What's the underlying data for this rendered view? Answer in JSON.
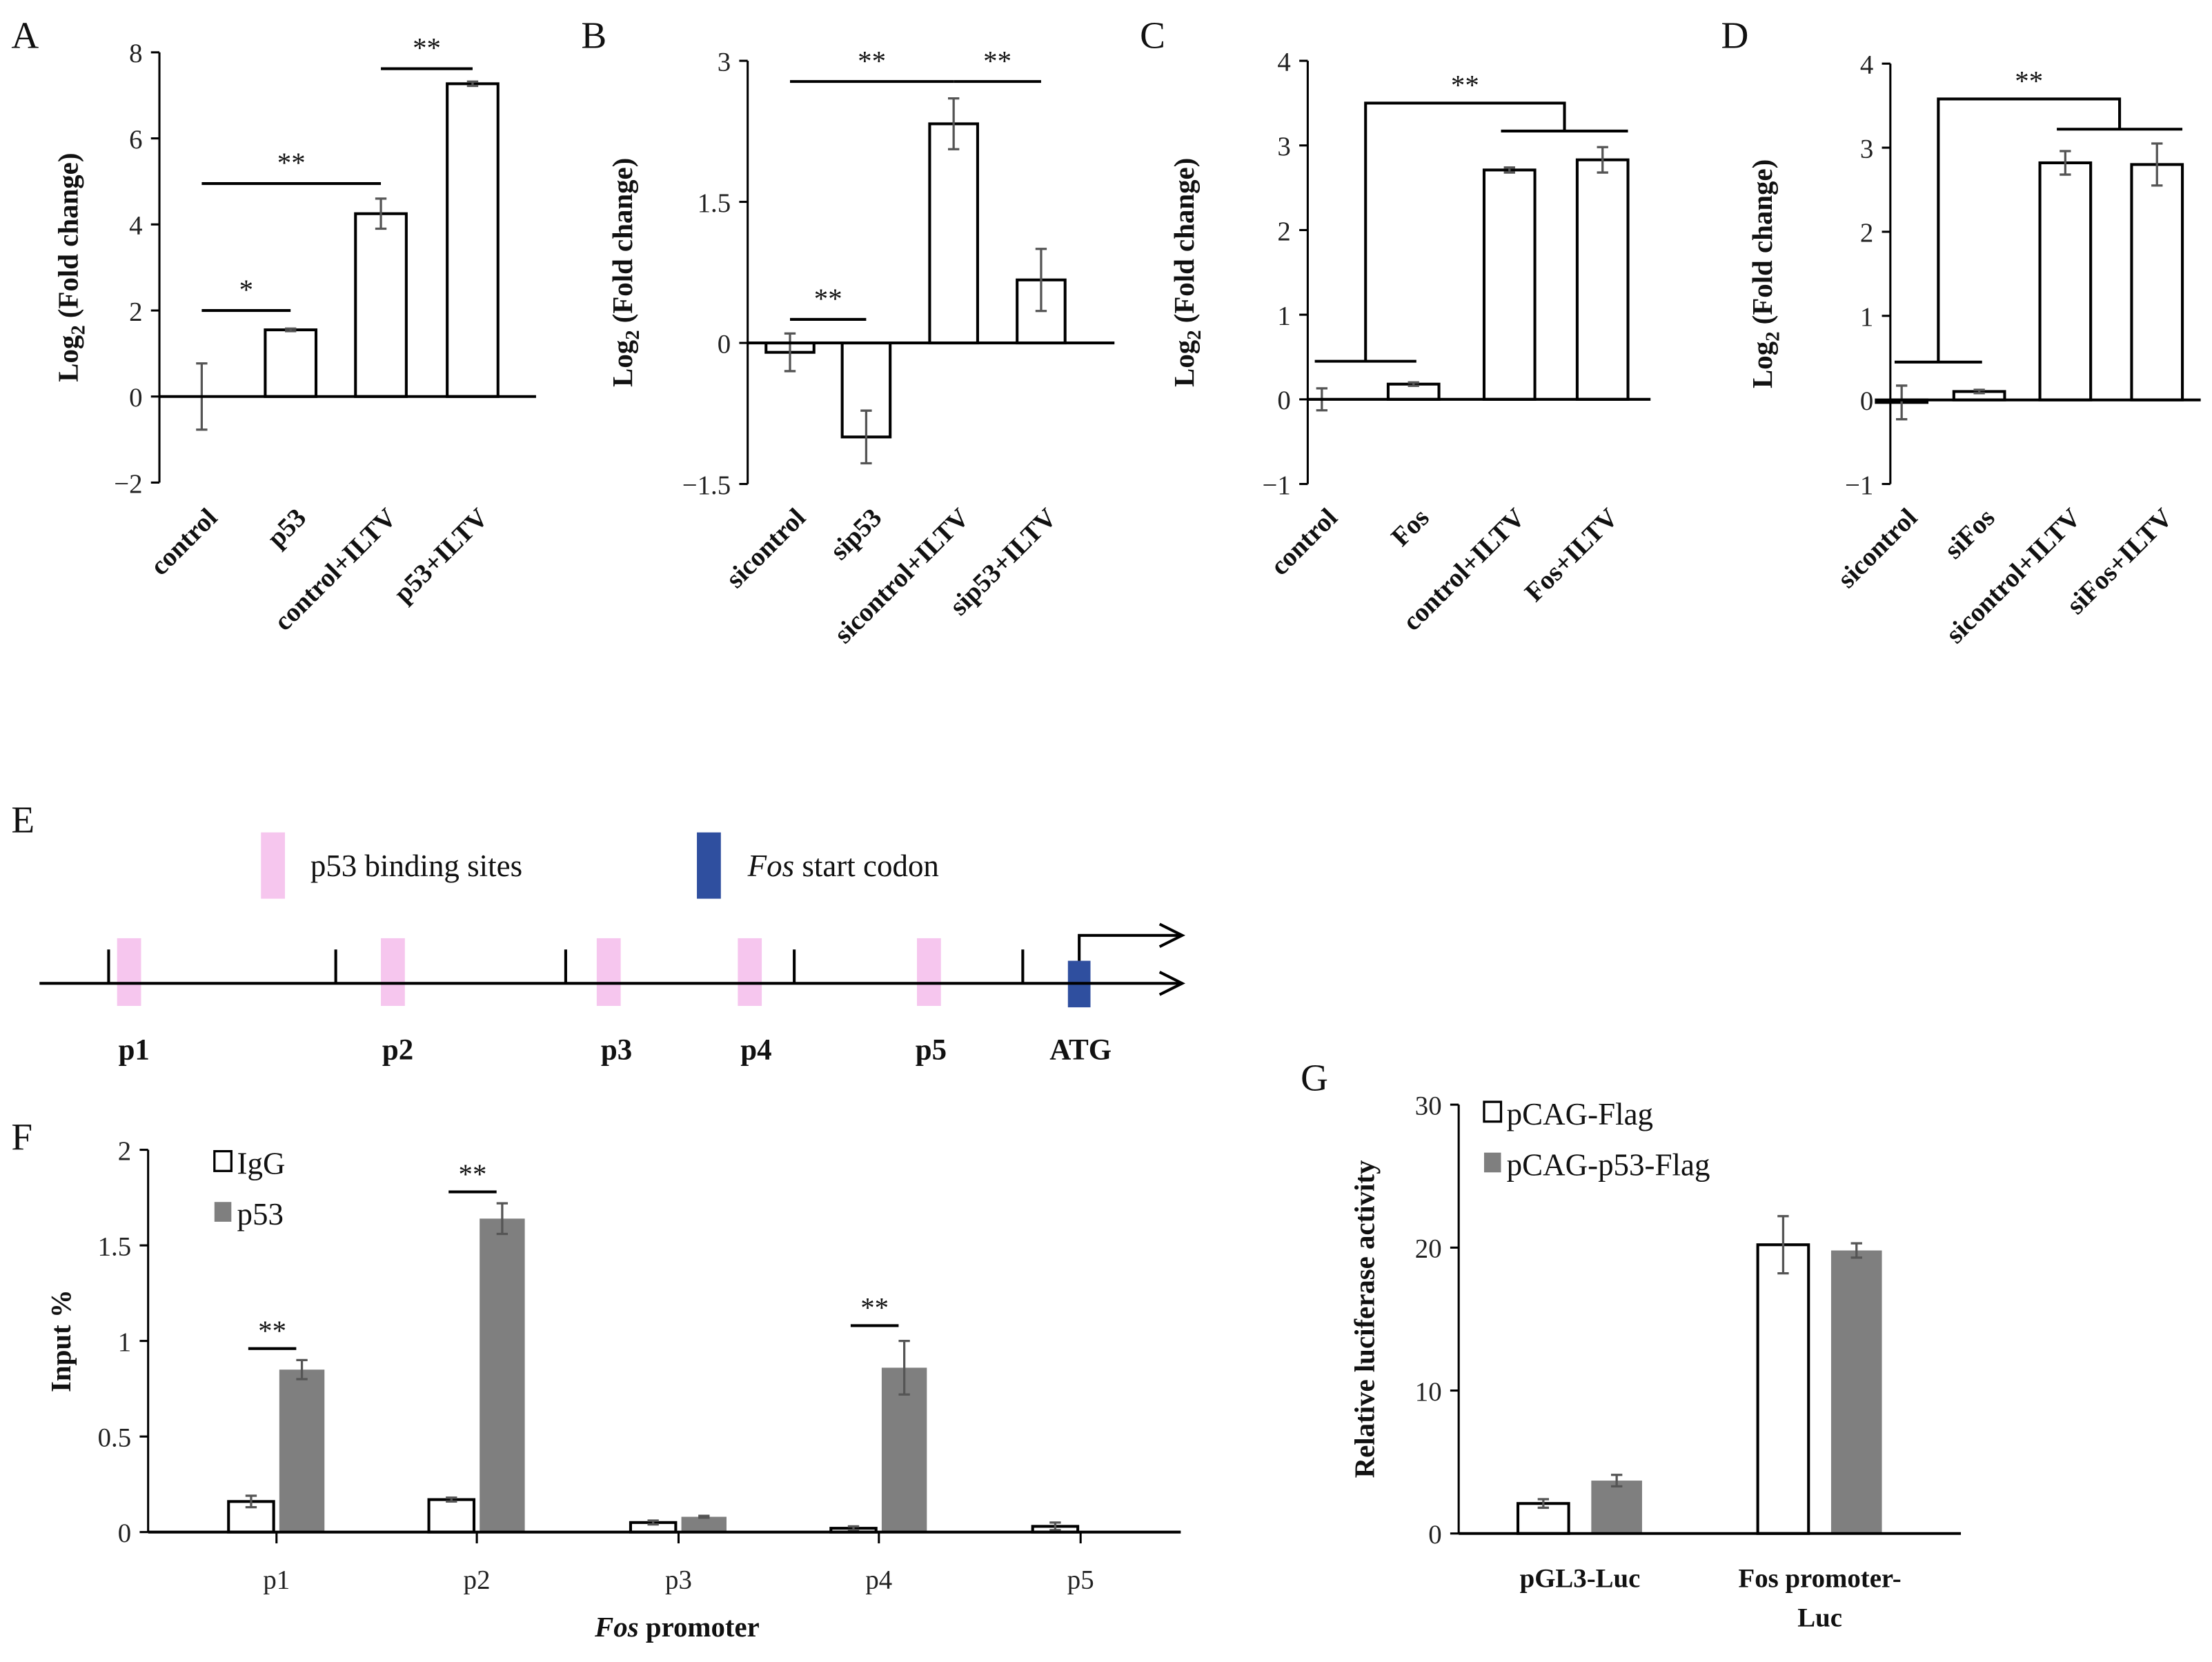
{
  "chart_data": [
    {
      "panel": "A",
      "type": "bar",
      "categories": [
        "control",
        "p53",
        "control+ILTV",
        "p53+ILTV"
      ],
      "series": [
        {
          "name": "",
          "values": [
            0,
            1.55,
            4.25,
            7.27
          ],
          "errors": [
            0.77,
            0.03,
            0.35,
            0.05
          ],
          "color": "#ffffff"
        }
      ],
      "ylabel": {
        "main": "Log",
        "sub": "2",
        "rest": " (Fold change)"
      },
      "ylim": [
        -2,
        8
      ],
      "yticks": [
        "−2",
        "0",
        "2",
        "4",
        "6",
        "8"
      ],
      "ytick_values": [
        -2,
        0,
        2,
        4,
        6,
        8
      ],
      "significance": [
        {
          "type": "line",
          "from": 0,
          "to": 1,
          "y": 2.0,
          "label": "*"
        },
        {
          "type": "line",
          "from": 0,
          "to": 2,
          "y": 4.95,
          "label": "**"
        },
        {
          "type": "line",
          "from": 2,
          "to": 3,
          "y": 7.62,
          "label": "**"
        }
      ]
    },
    {
      "panel": "B",
      "type": "bar",
      "categories": [
        "sicontrol",
        "sip53",
        "sicontrol+ILTV",
        "sip53+ILTV"
      ],
      "series": [
        {
          "name": "",
          "values": [
            -0.1,
            -1.0,
            2.33,
            0.67
          ],
          "errors": [
            0.2,
            0.28,
            0.27,
            0.33
          ],
          "color": "#ffffff"
        }
      ],
      "ylabel": {
        "main": "Log",
        "sub": "2",
        "rest": " (Fold change)"
      },
      "ylim": [
        -1.5,
        3
      ],
      "yticks": [
        "−1.5",
        "0",
        "1.5",
        "3"
      ],
      "ytick_values": [
        -1.5,
        0,
        1.5,
        3
      ],
      "significance": [
        {
          "type": "line",
          "from": 0,
          "to": 1,
          "y": 0.25,
          "label": "**"
        },
        {
          "type": "line",
          "from": 0.5,
          "to": 2,
          "y": 2.78,
          "label": "**"
        },
        {
          "type": "line",
          "from": 2,
          "to": 3,
          "y": 2.78,
          "label": "**"
        }
      ]
    },
    {
      "panel": "C",
      "type": "bar",
      "categories": [
        "control",
        "Fos",
        "control+ILTV",
        "Fos+ILTV"
      ],
      "series": [
        {
          "name": "",
          "values": [
            0,
            0.18,
            2.71,
            2.83
          ],
          "errors": [
            0.13,
            0.02,
            0.03,
            0.15
          ],
          "color": "#ffffff"
        }
      ],
      "ylabel": {
        "main": "Log",
        "sub": "2",
        "rest": " (Fold change)"
      },
      "ylim": [
        -1,
        4
      ],
      "yticks": [
        "−1",
        "0",
        "1",
        "2",
        "3",
        "4"
      ],
      "ytick_values": [
        -1,
        0,
        1,
        2,
        3,
        4
      ],
      "significance": [
        {
          "type": "bracket",
          "group1": [
            0,
            1
          ],
          "y1": 0.45,
          "group2": [
            2,
            3
          ],
          "y2": 3.17,
          "top": 3.5,
          "label": "**"
        }
      ]
    },
    {
      "panel": "D",
      "type": "bar",
      "categories": [
        "sicontrol",
        "siFos",
        "sicontrol+ILTV",
        "siFos+ILTV"
      ],
      "series": [
        {
          "name": "",
          "values": [
            -0.03,
            0.1,
            2.82,
            2.8
          ],
          "errors": [
            0.2,
            0.02,
            0.14,
            0.25
          ],
          "color": "#ffffff"
        }
      ],
      "ylabel": {
        "main": "Log",
        "sub": "2",
        "rest": " (Fold change)"
      },
      "ylim": [
        -1,
        4
      ],
      "yticks": [
        "−1",
        "0",
        "1",
        "2",
        "3",
        "4"
      ],
      "ytick_values": [
        -1,
        0,
        1,
        2,
        3,
        4
      ],
      "significance": [
        {
          "type": "bracket",
          "group1": [
            0,
            1
          ],
          "y1": 0.45,
          "group2": [
            2,
            3
          ],
          "y2": 3.22,
          "top": 3.58,
          "label": "**"
        }
      ]
    },
    {
      "panel": "F",
      "type": "bar",
      "categories": [
        "p1",
        "p2",
        "p3",
        "p4",
        "p5"
      ],
      "series": [
        {
          "name": "IgG",
          "values": [
            0.16,
            0.17,
            0.05,
            0.02,
            0.03
          ],
          "errors": [
            0.03,
            0.01,
            0.01,
            0.01,
            0.02
          ],
          "color": "#ffffff"
        },
        {
          "name": "p53",
          "values": [
            0.85,
            1.64,
            0.08,
            0.86,
            0
          ],
          "errors": [
            0.05,
            0.08,
            0.005,
            0.14,
            0
          ],
          "color": "#7f7f7f"
        }
      ],
      "ylabel": {
        "main": "Input  %",
        "sub": "",
        "rest": ""
      },
      "xlabel": {
        "italic": "Fos",
        "rest": " promoter"
      },
      "ylim": [
        0,
        2
      ],
      "yticks": [
        "0",
        "0.5",
        "1",
        "1.5",
        "2"
      ],
      "ytick_values": [
        0,
        0.5,
        1,
        1.5,
        2
      ],
      "legend_position": "top-left",
      "significance": [
        {
          "type": "pair",
          "category": 0,
          "y": 0.96,
          "label": "**"
        },
        {
          "type": "pair",
          "category": 1,
          "y": 1.78,
          "label": "**"
        },
        {
          "type": "pair",
          "category": 3,
          "y": 1.08,
          "label": "**"
        }
      ]
    },
    {
      "panel": "G",
      "type": "bar",
      "categories": [
        "pGL3-Luc",
        "Fos promoter-\nLuc"
      ],
      "series": [
        {
          "name": "pCAG-Flag",
          "values": [
            2.1,
            20.2
          ],
          "errors": [
            0.3,
            2.0
          ],
          "color": "#ffffff"
        },
        {
          "name": "pCAG-p53-Flag",
          "values": [
            3.7,
            19.8
          ],
          "errors": [
            0.4,
            0.5
          ],
          "color": "#7f7f7f"
        }
      ],
      "ylabel": {
        "main": "Relative luciferase activity",
        "sub": "",
        "rest": ""
      },
      "ylim": [
        0,
        30
      ],
      "yticks": [
        "0",
        "10",
        "20",
        "30"
      ],
      "ytick_values": [
        0,
        10,
        20,
        30
      ],
      "legend_position": "top-left",
      "significance": []
    }
  ],
  "diagram_e": {
    "panel": "E",
    "legend": {
      "binding_label": "p53 binding sites",
      "codon_italic": "Fos",
      "codon_rest": " start codon"
    },
    "site_labels": [
      "p1",
      "p2",
      "p3",
      "p4",
      "p5",
      "ATG"
    ],
    "colors": {
      "binding": "#f6c6ee",
      "codon": "#2f4f9f"
    }
  }
}
